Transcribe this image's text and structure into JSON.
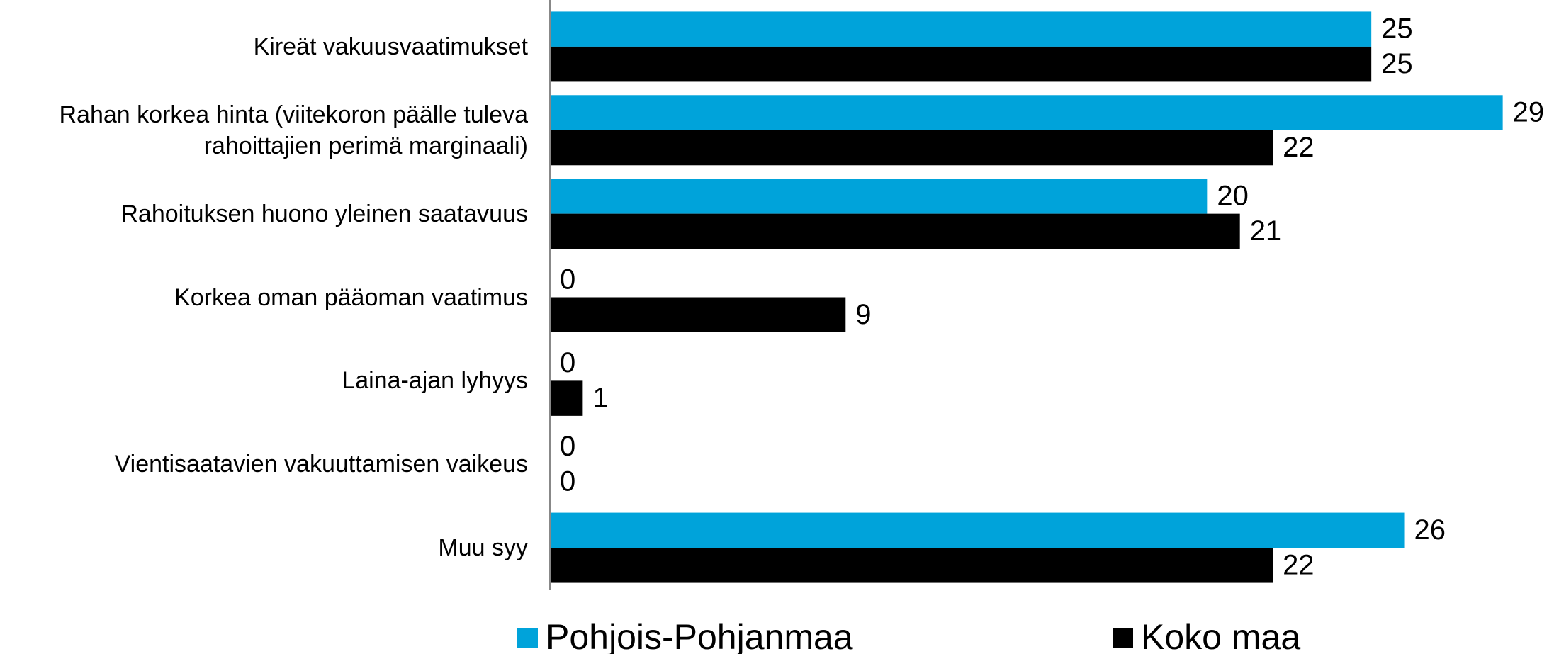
{
  "chart_data": {
    "type": "barh",
    "categories": [
      "Kireät vakuusvaatimukset",
      "Rahan korkea hinta (viitekoron päälle tuleva\nrahoittajien perimä marginaali)",
      "Rahoituksen huono yleinen saatavuus",
      "Korkea oman pääoman vaatimus",
      "Laina-ajan lyhyys",
      "Vientisaatavien vakuuttamisen vaikeus",
      "Muu syy"
    ],
    "series": [
      {
        "name": "Pohjois-Pohjanmaa",
        "color": "#00a3da",
        "values": [
          25,
          29,
          20,
          0,
          0,
          0,
          26
        ]
      },
      {
        "name": "Koko maa",
        "color": "#000000",
        "values": [
          25,
          22,
          21,
          9,
          1,
          0,
          22
        ]
      }
    ],
    "xlim": [
      0,
      30
    ],
    "legend": "bottom"
  }
}
